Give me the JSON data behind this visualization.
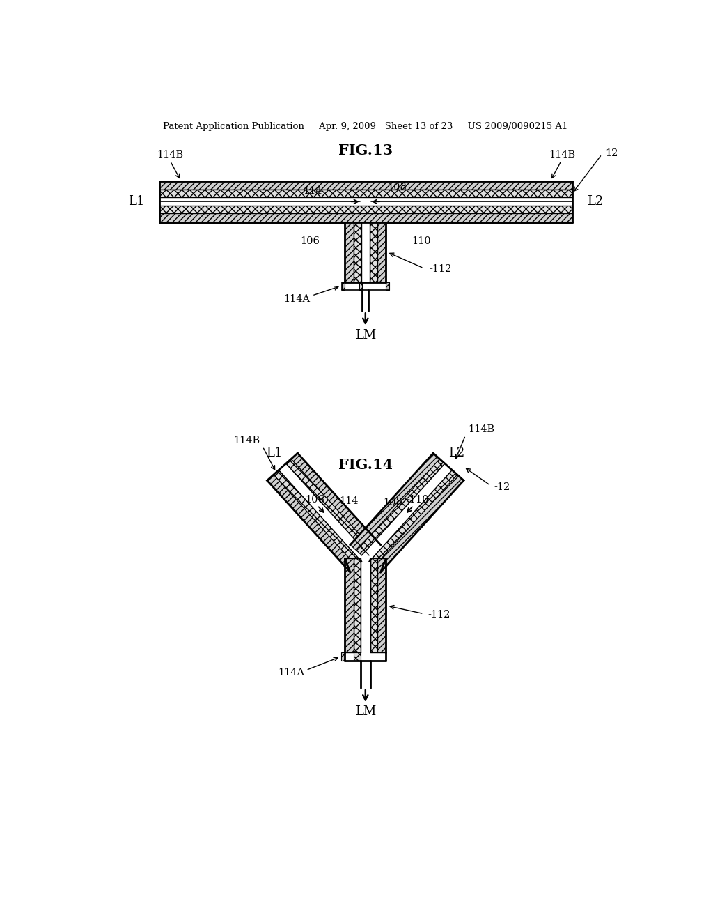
{
  "bg_color": "#ffffff",
  "line_color": "#000000",
  "header_text": "Patent Application Publication     Apr. 9, 2009   Sheet 13 of 23     US 2009/0090215 A1",
  "fig13_title": "FIG.13",
  "fig14_title": "FIG.14",
  "labels_13": {
    "114B_l": "114B",
    "114B_r": "114B",
    "114": "114",
    "108": "108",
    "12": "12",
    "L1": "L1",
    "L2": "L2",
    "106": "106",
    "110": "110",
    "112": "112",
    "114A": "114A",
    "LM": "LM"
  },
  "labels_14": {
    "114B_l": "114B",
    "114B_r": "114B",
    "114": "114",
    "108": "108",
    "12": "12",
    "L1": "L1",
    "L2": "L2",
    "106": "106",
    "110": "110",
    "112": "112",
    "114A": "114A",
    "LM": "LM"
  }
}
